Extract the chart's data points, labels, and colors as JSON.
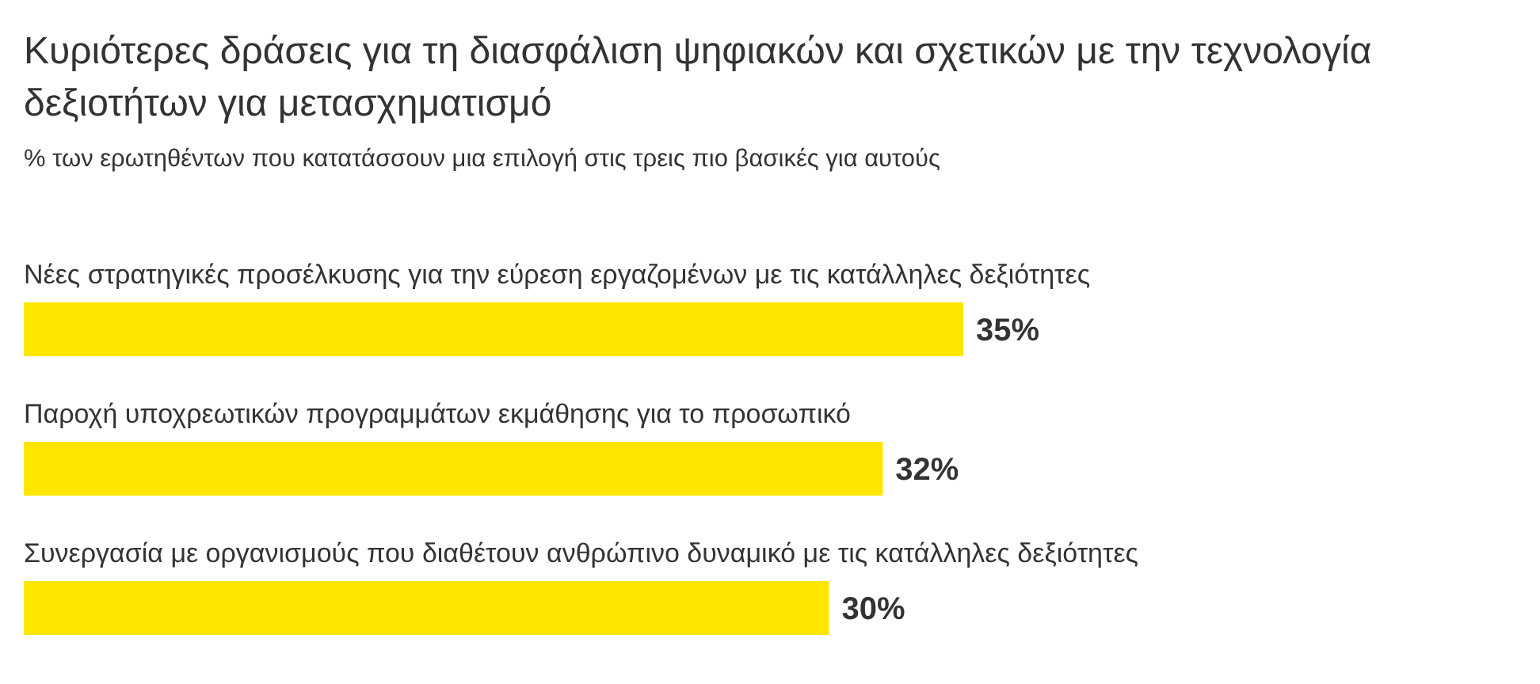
{
  "chart_data": {
    "type": "bar",
    "orientation": "horizontal",
    "title": "Κυριότερες δράσεις για τη διασφάλιση ψηφιακών και σχετικών με την τεχνολογία δεξιοτήτων για μετασχηματισμό",
    "subtitle": "% των ερωτηθέντων που κατατάσσουν μια επιλογή στις τρεις πιο βασικές για αυτούς",
    "categories": [
      "Νέες στρατηγικές προσέλκυσης για την εύρεση εργαζομένων με τις κατάλληλες δεξιότητες",
      "Παροχή υποχρεωτικών προγραμμάτων εκμάθησης για το προσωπικό",
      "Συνεργασία με οργανισμούς που διαθέτουν ανθρώπινο δυναμικό με τις κατάλληλες δεξιότητες"
    ],
    "values": [
      35,
      32,
      30
    ],
    "value_labels": [
      "35%",
      "32%",
      "30%"
    ],
    "color": "#ffe600"
  }
}
